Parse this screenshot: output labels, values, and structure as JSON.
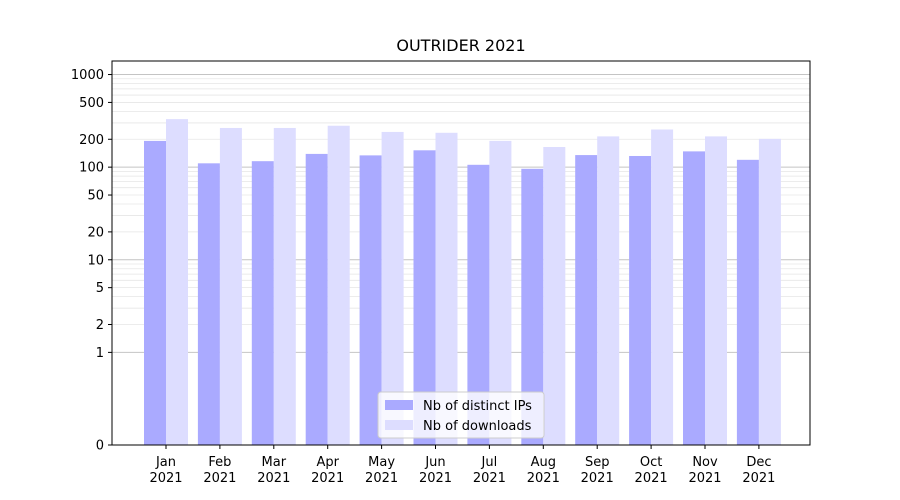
{
  "chart_data": {
    "type": "bar",
    "title": "OUTRIDER 2021",
    "xlabel": "",
    "ylabel": "",
    "yscale": "symlog",
    "ylim": [
      0,
      1400
    ],
    "yticks": [
      0,
      1,
      2,
      5,
      10,
      20,
      50,
      100,
      200,
      500,
      1000
    ],
    "categories": [
      [
        "Jan",
        "2021"
      ],
      [
        "Feb",
        "2021"
      ],
      [
        "Mar",
        "2021"
      ],
      [
        "Apr",
        "2021"
      ],
      [
        "May",
        "2021"
      ],
      [
        "Jun",
        "2021"
      ],
      [
        "Jul",
        "2021"
      ],
      [
        "Aug",
        "2021"
      ],
      [
        "Sep",
        "2021"
      ],
      [
        "Oct",
        "2021"
      ],
      [
        "Nov",
        "2021"
      ],
      [
        "Dec",
        "2021"
      ]
    ],
    "series": [
      {
        "name": "Nb of distinct IPs",
        "color": "#aaaaff",
        "values": [
          192,
          110,
          116,
          139,
          134,
          152,
          106,
          96,
          135,
          132,
          148,
          120
        ]
      },
      {
        "name": "Nb of downloads",
        "color": "#ddddff",
        "values": [
          330,
          265,
          265,
          280,
          240,
          235,
          192,
          165,
          215,
          255,
          215,
          202
        ]
      }
    ],
    "grid": true,
    "legend": "lower-center"
  }
}
